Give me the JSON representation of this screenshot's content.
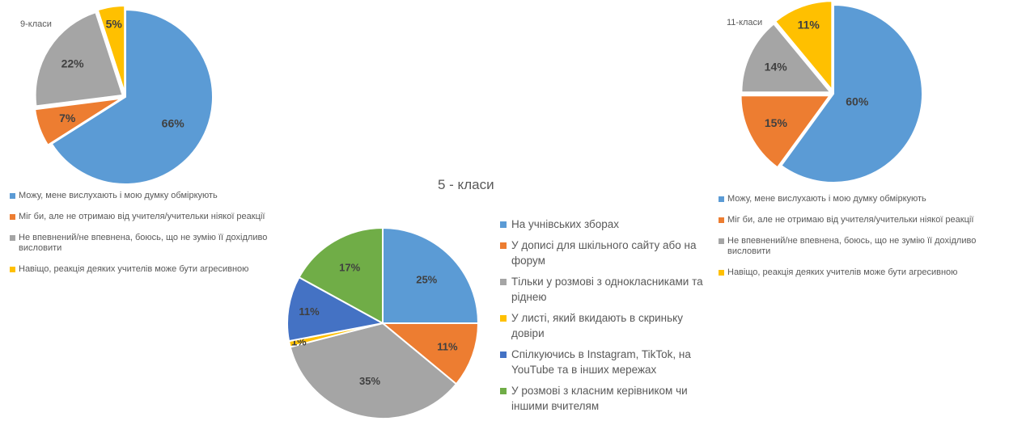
{
  "chart_data": [
    {
      "type": "pie",
      "title": "9-класи",
      "categories": [
        "Можу, мене вислухають і мою думку обміркують",
        "Міг би, але не отримаю від учителя/учительки ніякої реакції",
        "Не впевнений/не впевнена, боюсь, що не зумію її дохідливо висловити",
        "Навіщо, реакція деяких учителів може бути агресивною"
      ],
      "values": [
        66,
        7,
        22,
        5
      ],
      "labels": [
        "66%",
        "7%",
        "22%",
        "5%"
      ],
      "colors": [
        "#5B9BD5",
        "#ED7D31",
        "#A5A5A5",
        "#FFC000"
      ],
      "legend": "bottom"
    },
    {
      "type": "pie",
      "title": "11-класи",
      "categories": [
        "Можу, мене вислухають і мою думку обміркують",
        "Міг би, але не отримаю від учителя/учительки ніякої реакції",
        "Не впевнений/не впевнена, боюсь, що не зумію її дохідливо висловити",
        "Навіщо, реакція деяких учителів може бути агресивною"
      ],
      "values": [
        60,
        15,
        14,
        11
      ],
      "labels": [
        "60%",
        "15%",
        "14%",
        "11%"
      ],
      "colors": [
        "#5B9BD5",
        "#ED7D31",
        "#A5A5A5",
        "#FFC000"
      ],
      "legend": "bottom"
    },
    {
      "type": "pie",
      "title": "5 - класи",
      "categories": [
        "На учнівських зборах",
        "У дописі для шкільного сайту або на форум",
        "Тільки у розмові з однокласниками та ріднею",
        "У листі, який вкидають в скриньку довіри",
        "Спілкуючись в Instagram, TikTok, на YouTube та в інших мережах",
        "У розмові з класним керівником чи іншими вчителям"
      ],
      "values": [
        25,
        11,
        35,
        1,
        11,
        17
      ],
      "labels": [
        "25%",
        "11%",
        "35%",
        "1%",
        "11%",
        "17%"
      ],
      "colors": [
        "#5B9BD5",
        "#ED7D31",
        "#A5A5A5",
        "#FFC000",
        "#4472C4",
        "#70AD47"
      ],
      "legend": "right"
    }
  ]
}
